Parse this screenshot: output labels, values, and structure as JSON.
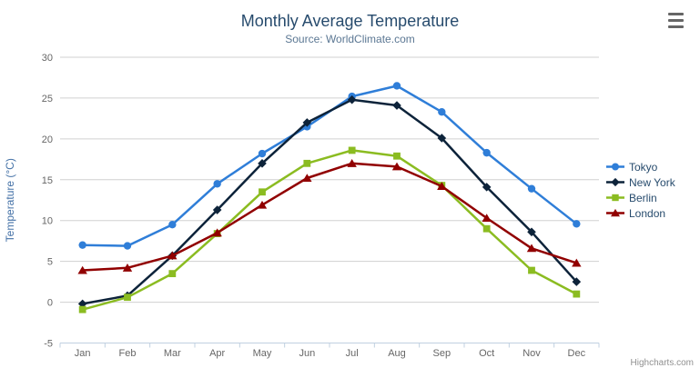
{
  "header": {
    "title": "Monthly Average Temperature",
    "subtitle": "Source: WorldClimate.com"
  },
  "credits": "Highcharts.com",
  "icons": {
    "context_menu": "hamburger-icon"
  },
  "colors": {
    "title": "#274b6d",
    "subtitle": "#5b7793",
    "axis_title": "#4572a7",
    "tick_label": "#666666",
    "gridline": "#d0d0d0",
    "axis_line": "#c0d0e0",
    "legend_text": "#274b6d",
    "credits": "#909090",
    "menu_icon": "#666666",
    "background": "#ffffff"
  },
  "chart_data": {
    "type": "line",
    "title": "Monthly Average Temperature",
    "subtitle": "Source: WorldClimate.com",
    "categories": [
      "Jan",
      "Feb",
      "Mar",
      "Apr",
      "May",
      "Jun",
      "Jul",
      "Aug",
      "Sep",
      "Oct",
      "Nov",
      "Dec"
    ],
    "series": [
      {
        "name": "Tokyo",
        "color": "#2f7ed8",
        "marker": "circle",
        "values": [
          7.0,
          6.9,
          9.5,
          14.5,
          18.2,
          21.5,
          25.2,
          26.5,
          23.3,
          18.3,
          13.9,
          9.6
        ]
      },
      {
        "name": "New York",
        "color": "#0d233a",
        "marker": "diamond",
        "values": [
          -0.2,
          0.8,
          5.7,
          11.3,
          17.0,
          22.0,
          24.8,
          24.1,
          20.1,
          14.1,
          8.6,
          2.5
        ]
      },
      {
        "name": "Berlin",
        "color": "#8bbc21",
        "marker": "square",
        "values": [
          -0.9,
          0.6,
          3.5,
          8.4,
          13.5,
          17.0,
          18.6,
          17.9,
          14.3,
          9.0,
          3.9,
          1.0
        ]
      },
      {
        "name": "London",
        "color": "#910000",
        "marker": "triangle",
        "values": [
          3.9,
          4.2,
          5.7,
          8.5,
          11.9,
          15.2,
          17.0,
          16.6,
          14.2,
          10.3,
          6.6,
          4.8
        ]
      }
    ],
    "xlabel": "",
    "ylabel": "Temperature (°C)",
    "ylim": [
      -5,
      30
    ],
    "yticks": [
      -5,
      0,
      5,
      10,
      15,
      20,
      25,
      30
    ],
    "grid": true,
    "legend_position": "right"
  }
}
